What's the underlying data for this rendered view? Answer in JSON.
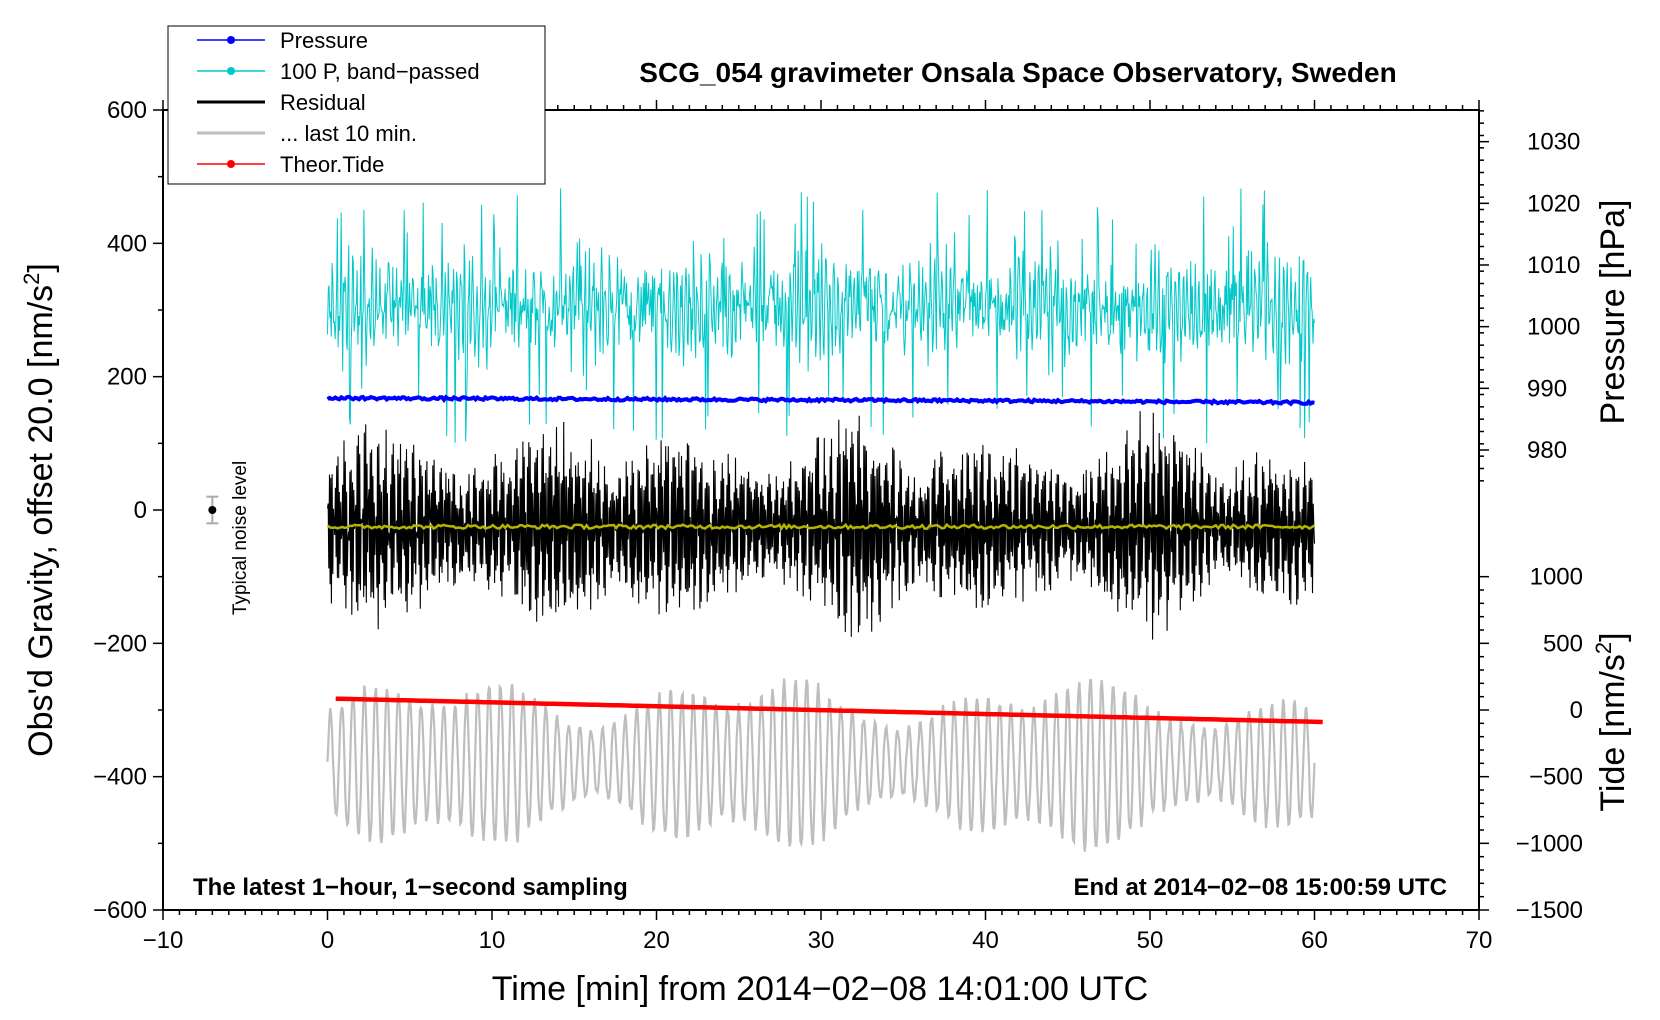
{
  "chart_data": {
    "type": "line",
    "title": "SCG_054 gravimeter Onsala Space Observatory, Sweden",
    "xlabel": "Time [min] from 2014−02−08 14:01:00 UTC",
    "ylabel_left": "Obs'd Gravity, offset 20.0 [nm/s",
    "ylabel_left_sup": "2",
    "ylabel_left_end": "]",
    "ylabel_right_pressure": "Pressure [hPa]",
    "ylabel_right_tide": "Tide [nm/s",
    "ylabel_right_tide_sup": "2",
    "ylabel_right_tide_end": "]",
    "xlim": [
      -10,
      70
    ],
    "ylim_left": [
      -600,
      600
    ],
    "x_ticks": [
      -10,
      0,
      10,
      20,
      30,
      40,
      50,
      60,
      70
    ],
    "x_tick_labels": [
      "−10",
      "0",
      "10",
      "20",
      "30",
      "40",
      "50",
      "60",
      "70"
    ],
    "y_left_ticks": [
      -600,
      -400,
      -200,
      0,
      200,
      400,
      600
    ],
    "y_left_tick_labels": [
      "−600",
      "−400",
      "−200",
      "0",
      "200",
      "400",
      "600"
    ],
    "pressure_axis": {
      "ticks": [
        980,
        990,
        1000,
        1010,
        1020,
        1030
      ],
      "tick_labels": [
        "980",
        "990",
        "1000",
        "1010",
        "1020",
        "1030"
      ],
      "map": {
        "hpa_a": 1000,
        "gravity_a": 275,
        "hpa_b": 1020,
        "gravity_b": 460
      }
    },
    "tide_axis": {
      "ticks": [
        -1500,
        -1000,
        -500,
        0,
        500,
        1000
      ],
      "tick_labels": [
        "−1500",
        "−1000",
        "−500",
        "0",
        "500",
        "1000"
      ],
      "map": {
        "tide_a": -1500,
        "gravity_a": -600,
        "tide_b": 1000,
        "gravity_b": -100
      }
    },
    "annotations": {
      "bottom_left": "The latest 1−hour, 1−second sampling",
      "bottom_right": "End at 2014−02−08 15:00:59 UTC",
      "noise_label": "Typical noise level"
    },
    "noise_bar": {
      "x": -7,
      "y": 0,
      "half_range": 20
    },
    "legend": [
      {
        "label": "Pressure",
        "color": "#0000ff",
        "marker": true
      },
      {
        "label": "100 P, band−passed",
        "color": "#00c8c8",
        "marker": true
      },
      {
        "label": "Residual",
        "color": "#000000",
        "marker": false
      },
      {
        "label": "... last 10 min.",
        "color": "#bebebe",
        "marker": false
      },
      {
        "label": "Theor.Tide",
        "color": "#ff0000",
        "marker": true
      }
    ],
    "series": [
      {
        "name": "Pressure",
        "color": "#0000ff",
        "description": "nearly flat, slowly decreasing",
        "x": [
          0,
          20,
          40,
          60
        ],
        "y": [
          168,
          166,
          164,
          161
        ]
      },
      {
        "name": "100 P, band−passed",
        "color": "#00c8c8",
        "description": "high-frequency oscillation",
        "x_range": [
          0,
          60
        ],
        "center": 305,
        "range": [
          100,
          495
        ]
      },
      {
        "name": "Residual",
        "color": "#000000",
        "description": "high-frequency oscillation",
        "x_range": [
          0,
          60
        ],
        "center": -25,
        "range": [
          -205,
          160
        ]
      },
      {
        "name": "Residual smoothed",
        "color": "#b4b400",
        "description": "flat line",
        "x_range": [
          0,
          60
        ],
        "y": -25
      },
      {
        "name": "... last 10 min.",
        "color": "#bebebe",
        "description": "oscillating trace",
        "x_range": [
          0,
          60
        ],
        "center": -380,
        "range": [
          -535,
          -210
        ]
      },
      {
        "name": "Theor.Tide",
        "color": "#ff0000",
        "description": "slowly decreasing",
        "x": [
          0.5,
          60.5
        ],
        "y": [
          -283,
          -318
        ]
      }
    ]
  }
}
